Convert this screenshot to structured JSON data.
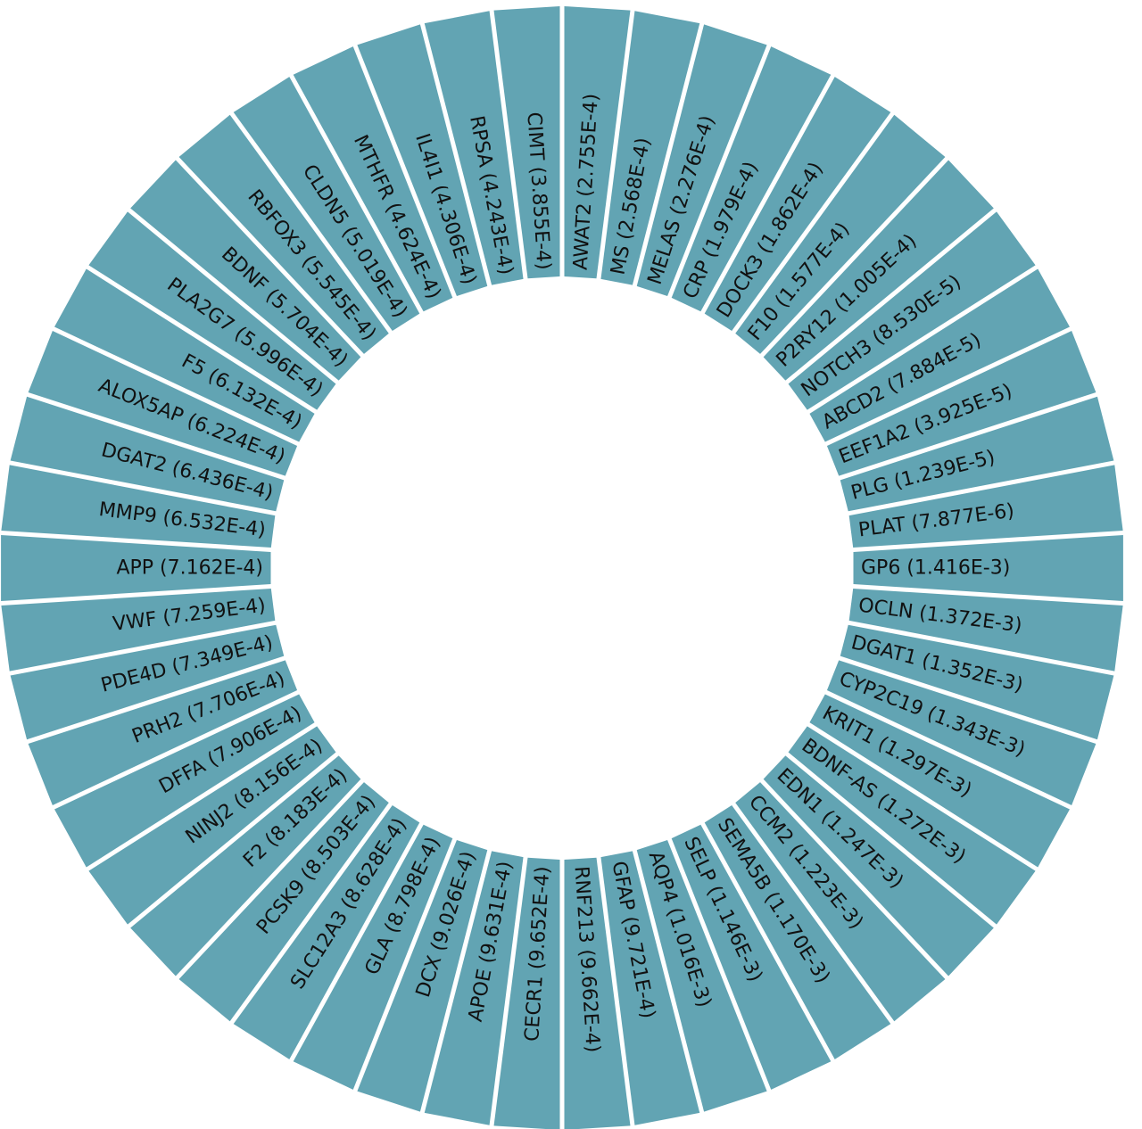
{
  "colors": {
    "bar": "#62a4b3",
    "separator": "#ffffff",
    "background": "#ffffff",
    "text": "#111111"
  },
  "chart_data": {
    "type": "bar",
    "layout": "circular-radial",
    "title": "",
    "grid": false,
    "legend": "none",
    "categories": [
      "GP6 (1.416E-3)",
      "OCLN (1.372E-3)",
      "DGAT1 (1.352E-3)",
      "CYP2C19 (1.343E-3)",
      "KRIT1 (1.297E-3)",
      "BDNF-AS (1.272E-3)",
      "EDN1 (1.247E-3)",
      "CCM2 (1.223E-3)",
      "SEMA5B (1.170E-3)",
      "SELP (1.146E-3)",
      "AQP4 (1.016E-3)",
      "GFAP (9.721E-4)",
      "RNF213 (9.662E-4)",
      "CECR1 (9.652E-4)",
      "APOE (9.631E-4)",
      "DCX (9.026E-4)",
      "GLA (8.798E-4)",
      "SLC12A3 (8.628E-4)",
      "PCSK9 (8.503E-4)",
      "F2 (8.183E-4)",
      "NINJ2 (8.156E-4)",
      "DFFA (7.906E-4)",
      "PRH2 (7.706E-4)",
      "PDE4D (7.349E-4)",
      "VWF (7.259E-4)",
      "APP (7.162E-4)",
      "MMP9 (6.532E-4)",
      "DGAT2 (6.436E-4)",
      "ALOX5AP (6.224E-4)",
      "F5 (6.132E-4)",
      "PLA2G7 (5.996E-4)",
      "BDNF (5.704E-4)",
      "RBFOX3 (5.545E-4)",
      "CLDN5 (5.019E-4)",
      "MTHFR (4.624E-4)",
      "IL4I1 (4.306E-4)",
      "RPSA (4.243E-4)",
      "CIMT (3.855E-4)",
      "AWAT2 (2.755E-4)",
      "MS (2.568E-4)",
      "MELAS (2.276E-4)",
      "CRP (1.979E-4)",
      "DOCK3 (1.862E-4)",
      "F10 (1.577E-4)",
      "P2RY12 (1.005E-4)",
      "NOTCH3 (8.530E-5)",
      "ABCD2 (7.884E-5)",
      "EEF1A2 (3.925E-5)",
      "PLG (1.239E-5)",
      "PLAT (7.877E-6)"
    ],
    "values": [
      0.001416,
      0.001372,
      0.001352,
      0.001343,
      0.001297,
      0.001272,
      0.001247,
      0.001223,
      0.00117,
      0.001146,
      0.001016,
      0.0009721,
      0.0009662,
      0.0009652,
      0.0009631,
      0.0009026,
      0.0008798,
      0.0008628,
      0.0008503,
      0.0008183,
      0.0008156,
      0.0007906,
      0.0007706,
      0.0007349,
      0.0007259,
      0.0007162,
      0.0006532,
      0.0006436,
      0.0006224,
      0.0006132,
      0.0005996,
      0.0005704,
      0.0005545,
      0.0005019,
      0.0004624,
      0.0004306,
      0.0004243,
      0.0003855,
      0.0002755,
      0.0002568,
      0.0002276,
      0.0001979,
      0.0001862,
      0.0001577,
      0.0001005,
      8.53e-05,
      7.884e-05,
      3.925e-05,
      1.239e-05,
      7.877e-06
    ]
  }
}
